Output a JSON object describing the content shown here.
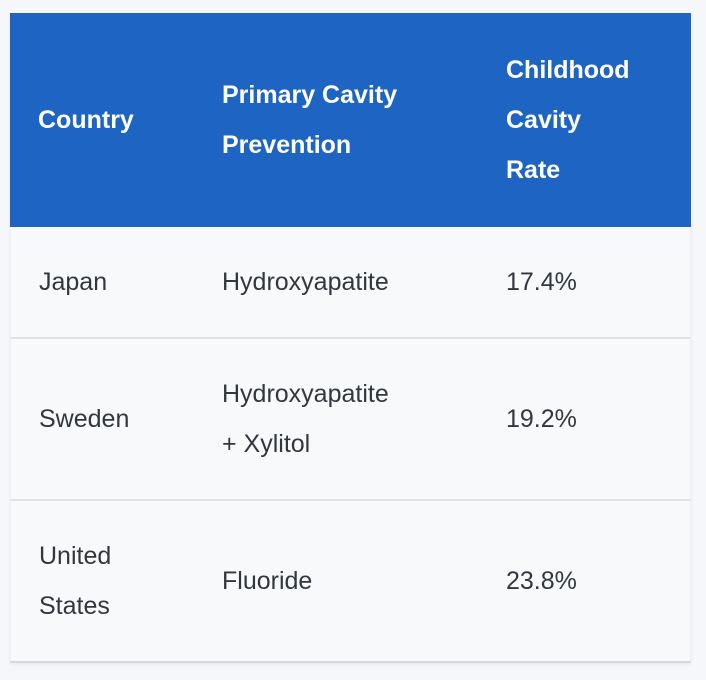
{
  "table": {
    "columns": [
      {
        "label": "Country"
      },
      {
        "label": "Primary Cavity\nPrevention"
      },
      {
        "label": "Childhood\nCavity\nRate"
      }
    ],
    "rows": [
      {
        "country": "Japan",
        "prevention": "Hydroxyapatite",
        "rate": "17.4%"
      },
      {
        "country": "Sweden",
        "prevention": "Hydroxyapatite + Xylitol",
        "rate": "19.2%"
      },
      {
        "country": "United States",
        "prevention": "Fluoride",
        "rate": "23.8%"
      }
    ],
    "colors": {
      "header_bg": "#1e64c2",
      "header_text": "#ffffff",
      "row_bg": "#f8f9fb",
      "page_bg": "#f6f7fa",
      "divider": "#dfe2e7",
      "bottom_border": "#d7d9de",
      "body_text": "#32373e"
    }
  }
}
